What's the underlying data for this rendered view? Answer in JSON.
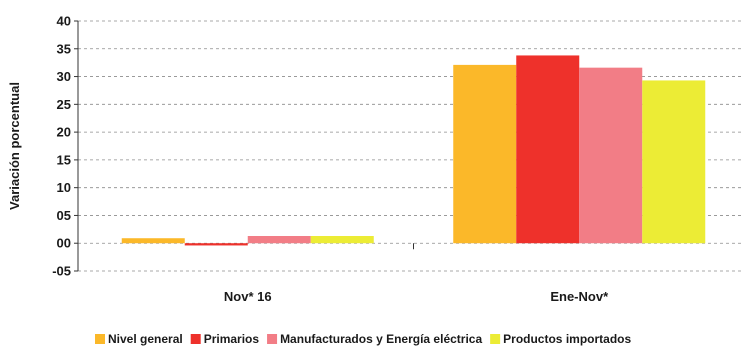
{
  "chart_data": {
    "type": "bar",
    "ylabel": "Variación porcentual",
    "xlabel": "",
    "title": "",
    "categories": [
      "Nov* 16",
      "Ene-Nov*"
    ],
    "series": [
      {
        "name": "Nivel general",
        "color": "#FBB829",
        "values": [
          0.9,
          32.1
        ]
      },
      {
        "name": "Primarios",
        "color": "#EE312B",
        "values": [
          -0.4,
          33.8
        ]
      },
      {
        "name": "Manufacturados y Energía eléctrica",
        "color": "#F27D86",
        "values": [
          1.3,
          31.6
        ]
      },
      {
        "name": "Productos importados",
        "color": "#ECEC35",
        "values": [
          1.3,
          29.3
        ]
      }
    ],
    "ylim": [
      -5,
      40
    ],
    "yticks": [
      -5,
      0,
      5,
      10,
      15,
      20,
      25,
      30,
      35,
      40
    ],
    "ytick_labels": [
      "-05",
      "00",
      "05",
      "10",
      "15",
      "20",
      "25",
      "30",
      "35",
      "40"
    ],
    "grid": "dashed-horizontal",
    "legend_position": "bottom"
  }
}
